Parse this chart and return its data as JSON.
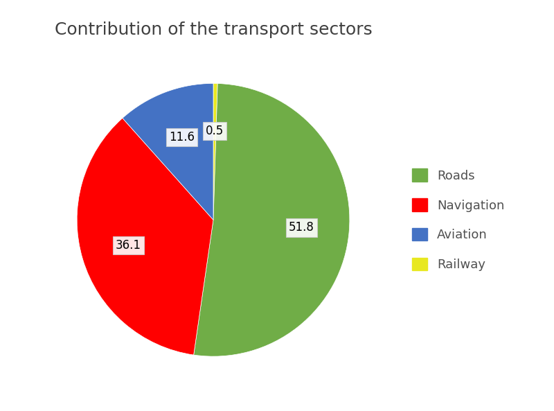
{
  "title": "Contribution of the transport sectors",
  "title_fontsize": 18,
  "slices": [
    51.8,
    36.1,
    11.6,
    0.5
  ],
  "labels": [
    "Roads",
    "Navigation",
    "Aviation",
    "Railway"
  ],
  "colors": [
    "#70ad47",
    "#ff0000",
    "#4472c4",
    "#e8e820"
  ],
  "autopct_values": [
    "51.8",
    "36.1",
    "11.6",
    "0.5"
  ],
  "startangle": 88,
  "legend_fontsize": 13,
  "background_color": "#ffffff",
  "pct_fontsize": 12
}
